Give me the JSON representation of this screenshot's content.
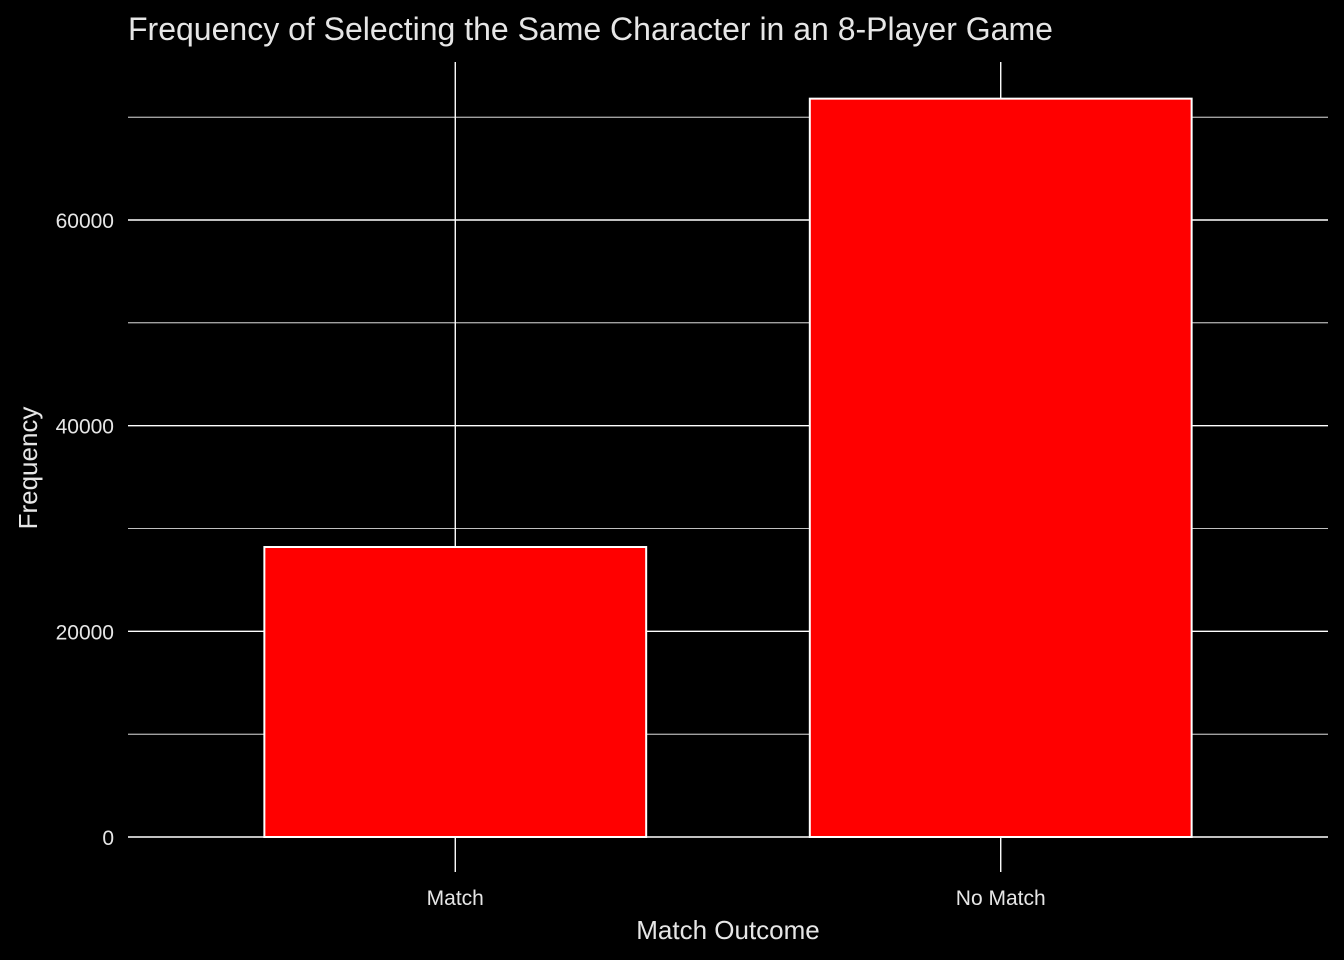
{
  "colors": {
    "background": "#000000",
    "bar_fill": "#ff0000",
    "bar_outline": "#ffffff",
    "grid": "#ffffff",
    "text": "#e6e6e6"
  },
  "chart_data": {
    "type": "bar",
    "title": "Frequency of Selecting the Same Character in an 8-Player Game",
    "xlabel": "Match Outcome",
    "ylabel": "Frequency",
    "categories": [
      "Match",
      "No Match"
    ],
    "values": [
      28200,
      71800
    ],
    "ylim": [
      0,
      75000
    ],
    "y_ticks": [
      0,
      20000,
      40000,
      60000
    ],
    "y_tick_labels": [
      "0",
      "20000",
      "40000",
      "60000"
    ],
    "grid": true,
    "legend": "none"
  }
}
